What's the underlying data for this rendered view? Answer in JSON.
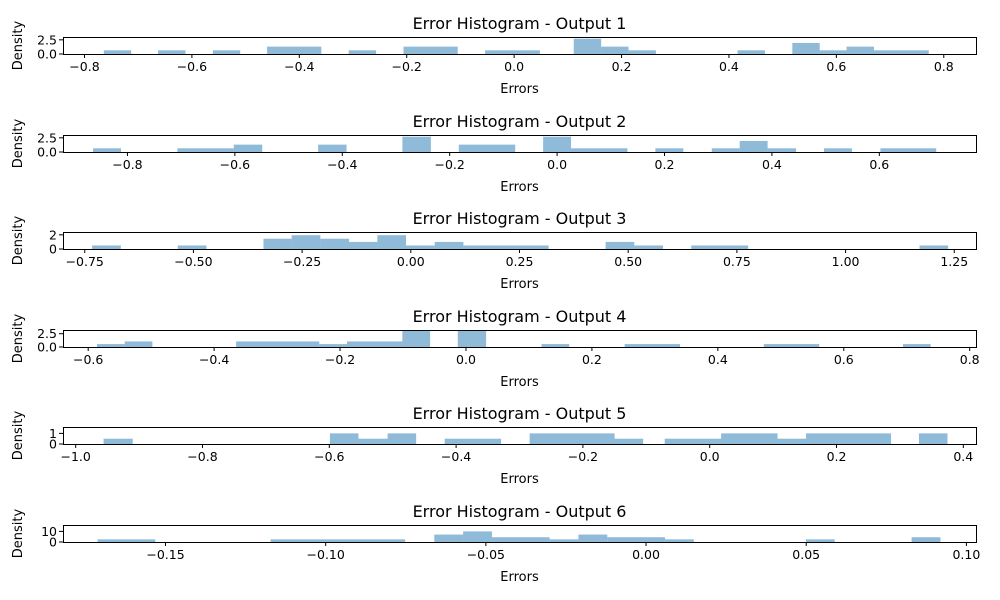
{
  "chart_data": [
    {
      "type": "histogram",
      "title": "Error Histogram - Output 1",
      "xlabel": "Errors",
      "ylabel": "Density",
      "xlim": [
        -0.84,
        0.86
      ],
      "ylim": [
        0,
        3.0
      ],
      "xticks": [
        -0.8,
        -0.6,
        -0.4,
        -0.2,
        0.0,
        0.2,
        0.4,
        0.6,
        0.8
      ],
      "xtick_labels": [
        "−0.8",
        "−0.6",
        "−0.4",
        "−0.2",
        "0.0",
        "0.2",
        "0.4",
        "0.6",
        "0.8"
      ],
      "yticks": [
        0,
        2.5
      ],
      "ytick_labels": [
        "0.0",
        "2.5"
      ],
      "bar_color": "#1f77b4",
      "bar_opacity": 0.5,
      "bins": [
        {
          "x0": -0.764,
          "x1": -0.713,
          "density": 0.65
        },
        {
          "x0": -0.663,
          "x1": -0.612,
          "density": 0.65
        },
        {
          "x0": -0.561,
          "x1": -0.51,
          "density": 0.65
        },
        {
          "x0": -0.46,
          "x1": -0.359,
          "density": 1.3
        },
        {
          "x0": -0.308,
          "x1": -0.257,
          "density": 0.65
        },
        {
          "x0": -0.206,
          "x1": -0.105,
          "density": 1.3
        },
        {
          "x0": -0.054,
          "x1": 0.048,
          "density": 0.65
        },
        {
          "x0": 0.111,
          "x1": 0.162,
          "density": 2.7
        },
        {
          "x0": 0.162,
          "x1": 0.213,
          "density": 1.3
        },
        {
          "x0": 0.213,
          "x1": 0.264,
          "density": 0.65
        },
        {
          "x0": 0.416,
          "x1": 0.467,
          "density": 0.65
        },
        {
          "x0": 0.518,
          "x1": 0.569,
          "density": 1.95
        },
        {
          "x0": 0.569,
          "x1": 0.619,
          "density": 0.65
        },
        {
          "x0": 0.619,
          "x1": 0.67,
          "density": 1.3
        },
        {
          "x0": 0.67,
          "x1": 0.772,
          "density": 0.65
        }
      ]
    },
    {
      "type": "histogram",
      "title": "Error Histogram - Output 2",
      "xlabel": "Errors",
      "ylabel": "Density",
      "xlim": [
        -0.92,
        0.78
      ],
      "ylim": [
        0,
        3.0
      ],
      "xticks": [
        -0.8,
        -0.6,
        -0.4,
        -0.2,
        0.0,
        0.2,
        0.4,
        0.6
      ],
      "xtick_labels": [
        "−0.8",
        "−0.6",
        "−0.4",
        "−0.2",
        "0.0",
        "0.2",
        "0.4",
        "0.6"
      ],
      "yticks": [
        0,
        2.5
      ],
      "ytick_labels": [
        "0.0",
        "2.5"
      ],
      "bar_color": "#1f77b4",
      "bar_opacity": 0.5,
      "bins": [
        {
          "x0": -0.864,
          "x1": -0.812,
          "density": 0.65
        },
        {
          "x0": -0.707,
          "x1": -0.602,
          "density": 0.65
        },
        {
          "x0": -0.602,
          "x1": -0.549,
          "density": 1.3
        },
        {
          "x0": -0.445,
          "x1": -0.392,
          "density": 1.3
        },
        {
          "x0": -0.288,
          "x1": -0.235,
          "density": 2.7
        },
        {
          "x0": -0.183,
          "x1": -0.078,
          "density": 1.3
        },
        {
          "x0": -0.026,
          "x1": 0.026,
          "density": 2.7
        },
        {
          "x0": 0.026,
          "x1": 0.131,
          "density": 0.65
        },
        {
          "x0": 0.183,
          "x1": 0.235,
          "density": 0.65
        },
        {
          "x0": 0.288,
          "x1": 0.34,
          "density": 0.65
        },
        {
          "x0": 0.34,
          "x1": 0.392,
          "density": 1.95
        },
        {
          "x0": 0.392,
          "x1": 0.445,
          "density": 0.65
        },
        {
          "x0": 0.497,
          "x1": 0.549,
          "density": 0.65
        },
        {
          "x0": 0.602,
          "x1": 0.706,
          "density": 0.65
        }
      ]
    },
    {
      "type": "histogram",
      "title": "Error Histogram - Output 3",
      "xlabel": "Errors",
      "ylabel": "Density",
      "xlim": [
        -0.8,
        1.3
      ],
      "ylim": [
        0,
        2.4
      ],
      "xticks": [
        -0.75,
        -0.5,
        -0.25,
        0.0,
        0.25,
        0.5,
        0.75,
        1.0,
        1.25
      ],
      "xtick_labels": [
        "−0.75",
        "−0.50",
        "−0.25",
        "0.00",
        "0.25",
        "0.50",
        "0.75",
        "1.00",
        "1.25"
      ],
      "yticks": [
        0,
        2
      ],
      "ytick_labels": [
        "0",
        "2"
      ],
      "bar_color": "#1f77b4",
      "bar_opacity": 0.5,
      "bins": [
        {
          "x0": -0.733,
          "x1": -0.667,
          "density": 0.5
        },
        {
          "x0": -0.536,
          "x1": -0.47,
          "density": 0.5
        },
        {
          "x0": -0.339,
          "x1": -0.274,
          "density": 1.45
        },
        {
          "x0": -0.274,
          "x1": -0.208,
          "density": 1.95
        },
        {
          "x0": -0.208,
          "x1": -0.142,
          "density": 1.45
        },
        {
          "x0": -0.142,
          "x1": -0.077,
          "density": 1.0
        },
        {
          "x0": -0.077,
          "x1": -0.011,
          "density": 1.95
        },
        {
          "x0": -0.011,
          "x1": 0.055,
          "density": 0.5
        },
        {
          "x0": 0.055,
          "x1": 0.121,
          "density": 1.0
        },
        {
          "x0": 0.121,
          "x1": 0.317,
          "density": 0.5
        },
        {
          "x0": 0.448,
          "x1": 0.514,
          "density": 1.0
        },
        {
          "x0": 0.514,
          "x1": 0.58,
          "density": 0.5
        },
        {
          "x0": 0.645,
          "x1": 0.776,
          "density": 0.5
        },
        {
          "x0": 1.17,
          "x1": 1.236,
          "density": 0.5
        }
      ]
    },
    {
      "type": "histogram",
      "title": "Error Histogram - Output 4",
      "xlabel": "Errors",
      "ylabel": "Density",
      "xlim": [
        -0.64,
        0.81
      ],
      "ylim": [
        0,
        3.2
      ],
      "xticks": [
        -0.6,
        -0.4,
        -0.2,
        0.0,
        0.2,
        0.4,
        0.6,
        0.8
      ],
      "xtick_labels": [
        "−0.6",
        "−0.4",
        "−0.2",
        "0.0",
        "0.2",
        "0.4",
        "0.6",
        "0.8"
      ],
      "yticks": [
        0,
        2.5
      ],
      "ytick_labels": [
        "0.0",
        "2.5"
      ],
      "bar_color": "#1f77b4",
      "bar_opacity": 0.5,
      "bins": [
        {
          "x0": -0.586,
          "x1": -0.542,
          "density": 0.55
        },
        {
          "x0": -0.542,
          "x1": -0.498,
          "density": 1.05
        },
        {
          "x0": -0.365,
          "x1": -0.233,
          "density": 1.05
        },
        {
          "x0": -0.233,
          "x1": -0.189,
          "density": 0.55
        },
        {
          "x0": -0.189,
          "x1": -0.101,
          "density": 1.05
        },
        {
          "x0": -0.101,
          "x1": -0.057,
          "density": 3.15
        },
        {
          "x0": -0.013,
          "x1": 0.032,
          "density": 3.15
        },
        {
          "x0": 0.12,
          "x1": 0.164,
          "density": 0.55
        },
        {
          "x0": 0.252,
          "x1": 0.34,
          "density": 0.55
        },
        {
          "x0": 0.473,
          "x1": 0.561,
          "density": 0.55
        },
        {
          "x0": 0.694,
          "x1": 0.738,
          "density": 0.55
        }
      ]
    },
    {
      "type": "histogram",
      "title": "Error Histogram - Output 5",
      "xlabel": "Errors",
      "ylabel": "Density",
      "xlim": [
        -1.02,
        0.42
      ],
      "ylim": [
        0,
        1.6
      ],
      "xticks": [
        -1.0,
        -0.8,
        -0.6,
        -0.4,
        -0.2,
        0.0,
        0.2,
        0.4
      ],
      "xtick_labels": [
        "−1.0",
        "−0.8",
        "−0.6",
        "−0.4",
        "−0.2",
        "0.0",
        "0.2",
        "0.4"
      ],
      "yticks": [
        0,
        1
      ],
      "ytick_labels": [
        "0",
        "1"
      ],
      "bar_color": "#1f77b4",
      "bar_opacity": 0.5,
      "bins": [
        {
          "x0": -0.956,
          "x1": -0.91,
          "density": 0.5
        },
        {
          "x0": -0.599,
          "x1": -0.554,
          "density": 1.0
        },
        {
          "x0": -0.554,
          "x1": -0.508,
          "density": 0.5
        },
        {
          "x0": -0.508,
          "x1": -0.463,
          "density": 1.0
        },
        {
          "x0": -0.418,
          "x1": -0.329,
          "density": 0.5
        },
        {
          "x0": -0.284,
          "x1": -0.15,
          "density": 1.0
        },
        {
          "x0": -0.15,
          "x1": -0.105,
          "density": 0.5
        },
        {
          "x0": -0.071,
          "x1": 0.018,
          "density": 0.5
        },
        {
          "x0": 0.018,
          "x1": 0.107,
          "density": 1.0
        },
        {
          "x0": 0.107,
          "x1": 0.152,
          "density": 0.5
        },
        {
          "x0": 0.152,
          "x1": 0.286,
          "density": 1.0
        },
        {
          "x0": 0.33,
          "x1": 0.375,
          "density": 1.0
        }
      ]
    },
    {
      "type": "histogram",
      "title": "Error Histogram - Output 6",
      "xlabel": "Errors",
      "ylabel": "Density",
      "xlim": [
        -0.182,
        0.103
      ],
      "ylim": [
        0,
        16
      ],
      "xticks": [
        -0.15,
        -0.1,
        -0.05,
        0.0,
        0.05,
        0.1
      ],
      "xtick_labels": [
        "−0.15",
        "−0.10",
        "−0.05",
        "0.00",
        "0.05",
        "0.10"
      ],
      "yticks": [
        0,
        10
      ],
      "ytick_labels": [
        "0",
        "10"
      ],
      "bar_color": "#1f77b4",
      "bar_opacity": 0.5,
      "bins": [
        {
          "x0": -0.1712,
          "x1": -0.1532,
          "density": 2.5
        },
        {
          "x0": -0.1172,
          "x1": -0.0752,
          "density": 2.5
        },
        {
          "x0": -0.0661,
          "x1": -0.0571,
          "density": 7.0
        },
        {
          "x0": -0.0571,
          "x1": -0.0481,
          "density": 10.0
        },
        {
          "x0": -0.0481,
          "x1": -0.0301,
          "density": 4.5
        },
        {
          "x0": -0.0301,
          "x1": -0.0211,
          "density": 2.5
        },
        {
          "x0": -0.0211,
          "x1": -0.0121,
          "density": 7.0
        },
        {
          "x0": -0.0121,
          "x1": 0.0059,
          "density": 4.5
        },
        {
          "x0": 0.0059,
          "x1": 0.0149,
          "density": 2.5
        },
        {
          "x0": 0.0499,
          "x1": 0.0589,
          "density": 2.5
        },
        {
          "x0": 0.0829,
          "x1": 0.0919,
          "density": 4.5
        }
      ]
    }
  ]
}
